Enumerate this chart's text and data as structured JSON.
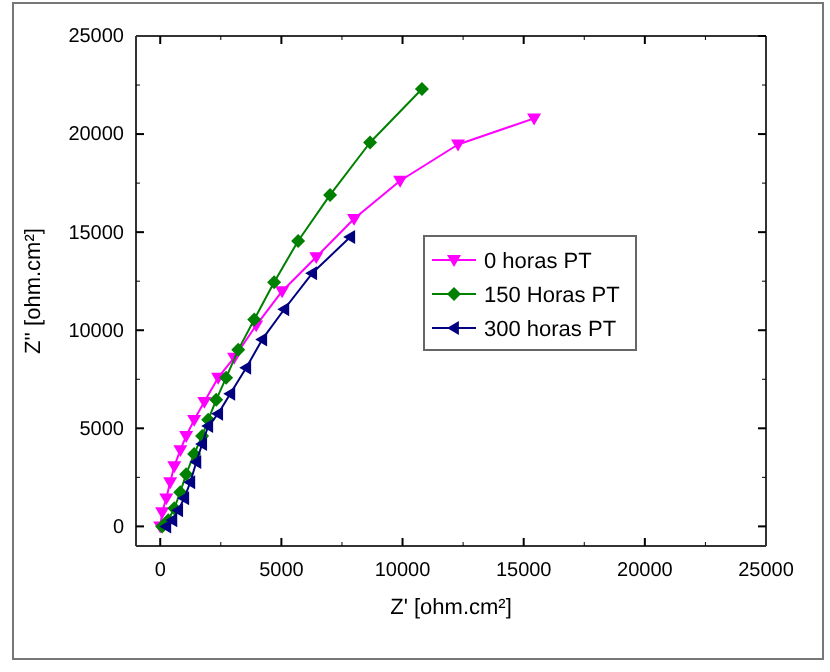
{
  "chart_data": {
    "type": "line",
    "xlabel": "Z' [ohm.cm²]",
    "ylabel": "Z'' [ohm.cm²]",
    "xlim": [
      -1000,
      25000
    ],
    "ylim": [
      -1000,
      25000
    ],
    "xticks": [
      0,
      {
        "value": 2500,
        "label": null
      },
      5000,
      {
        "value": 7500,
        "label": null
      },
      10000,
      {
        "value": 12500,
        "label": null
      },
      15000,
      {
        "value": 17500,
        "label": null
      },
      20000,
      {
        "value": 22500,
        "label": null
      },
      25000
    ],
    "yticks": [
      0,
      {
        "value": 2500,
        "label": null
      },
      5000,
      {
        "value": 7500,
        "label": null
      },
      10000,
      {
        "value": 12500,
        "label": null
      },
      15000,
      {
        "value": 17500,
        "label": null
      },
      20000,
      {
        "value": 22500,
        "label": null
      },
      25000
    ],
    "legend": "right",
    "grid": false,
    "series": [
      {
        "name": "0 horas PT",
        "color": "#ff00ff",
        "marker": "triangle-down",
        "x": [
          0,
          80,
          250,
          410,
          580,
          830,
          1070,
          1400,
          1820,
          2390,
          3050,
          3960,
          5030,
          6440,
          8000,
          9900,
          12290,
          15430
        ],
        "values": [
          0,
          720,
          1430,
          2250,
          3070,
          3890,
          4610,
          5430,
          6350,
          7580,
          8600,
          10250,
          11990,
          13730,
          15680,
          17620,
          19470,
          20800
        ]
      },
      {
        "name": "150 Horas PT",
        "color": "#008000",
        "marker": "diamond",
        "x": [
          80,
          330,
          580,
          825,
          1070,
          1400,
          1730,
          1980,
          2310,
          2720,
          3220,
          3880,
          4700,
          5690,
          7010,
          8660,
          10800
        ],
        "values": [
          0,
          310,
          920,
          1740,
          2660,
          3690,
          4610,
          5430,
          6450,
          7580,
          9000,
          10550,
          12450,
          14550,
          16900,
          19570,
          22300
        ]
      },
      {
        "name": "300 horas PT",
        "color": "#000080",
        "marker": "triangle-left",
        "x": [
          250,
          500,
          740,
          990,
          1240,
          1490,
          1730,
          1980,
          2390,
          2890,
          3550,
          4210,
          5120,
          6270,
          7840
        ],
        "values": [
          0,
          310,
          820,
          1430,
          2250,
          3280,
          4200,
          5120,
          5740,
          6760,
          8090,
          9530,
          11070,
          12900,
          14750
        ]
      }
    ]
  }
}
